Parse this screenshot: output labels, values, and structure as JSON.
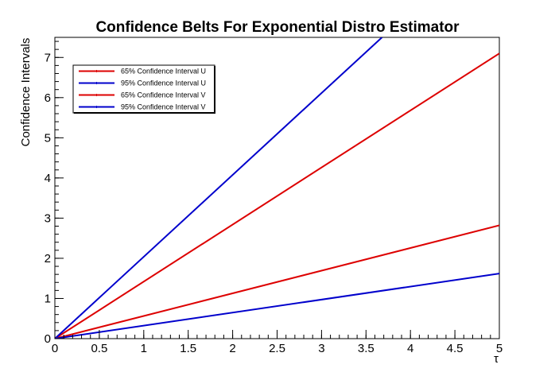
{
  "chart_data": {
    "type": "line",
    "title": "Confidence Belts For Exponential Distro Estimator",
    "xlabel": "τ",
    "ylabel": "Confidence Intervals",
    "xlim": [
      0,
      5
    ],
    "ylim": [
      0,
      7.5
    ],
    "x_ticks": [
      "0",
      "0.5",
      "1",
      "1.5",
      "2",
      "2.5",
      "3",
      "3.5",
      "4",
      "4.5",
      "5"
    ],
    "y_ticks": [
      "0",
      "1",
      "2",
      "3",
      "4",
      "5",
      "6",
      "7"
    ],
    "grid": false,
    "legend_position": "top-left",
    "series": [
      {
        "name": "65% Confidence Interval U",
        "color": "#dd0000",
        "x": [
          0,
          5
        ],
        "y": [
          0,
          7.1
        ]
      },
      {
        "name": "95% Confidence Interval U",
        "color": "#0000cc",
        "x": [
          0,
          3.68
        ],
        "y": [
          0,
          7.5
        ]
      },
      {
        "name": "65% Confidence Interval V",
        "color": "#dd0000",
        "x": [
          0,
          5
        ],
        "y": [
          0,
          2.82
        ]
      },
      {
        "name": "95% Confidence Interval V",
        "color": "#0000cc",
        "x": [
          0,
          5
        ],
        "y": [
          0,
          1.62
        ]
      }
    ]
  }
}
